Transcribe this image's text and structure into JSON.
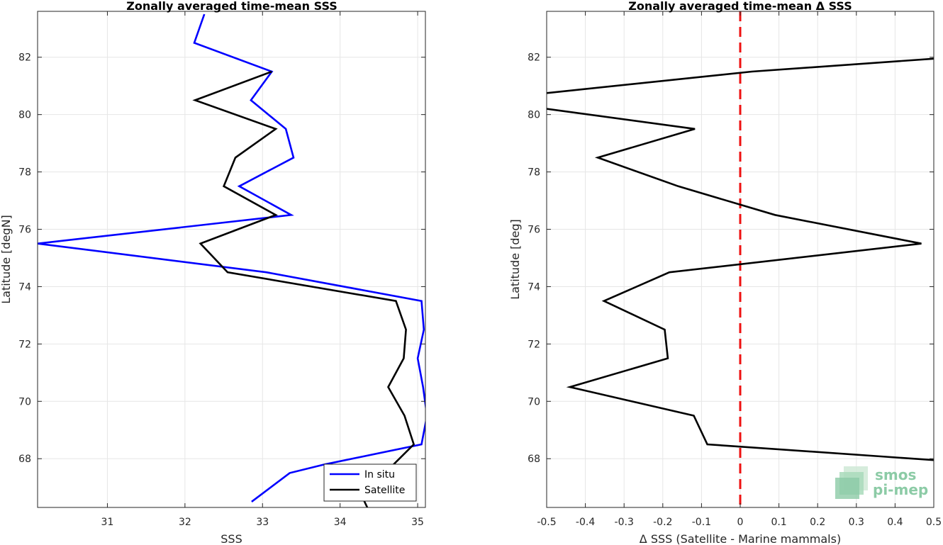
{
  "chart_data": [
    {
      "type": "line",
      "title": "Zonally averaged time-mean SSS",
      "xlabel": "SSS",
      "ylabel": "Latitude [degN]",
      "xlim": [
        30.1,
        35.1
      ],
      "ylim": [
        66.3,
        83.6
      ],
      "xticks": [
        31,
        32,
        33,
        34,
        35
      ],
      "yticks": [
        68,
        70,
        72,
        74,
        76,
        78,
        80,
        82
      ],
      "grid": true,
      "legend_position": "bottom-right",
      "legend": [
        "In situ",
        "Satellite"
      ],
      "series": [
        {
          "name": "In situ",
          "color": "#0000ff",
          "x": [
            32.86,
            33.35,
            33.8,
            35.05,
            35.12,
            35.07,
            35.0,
            35.08,
            35.05,
            33.05,
            30.1,
            33.37,
            32.7,
            33.4,
            33.3,
            32.85,
            33.12,
            32.12,
            32.25
          ],
          "y": [
            66.5,
            67.5,
            67.8,
            68.5,
            69.5,
            70.5,
            71.5,
            72.5,
            73.5,
            74.5,
            75.5,
            76.5,
            77.5,
            78.5,
            79.5,
            80.5,
            81.5,
            82.5,
            83.5
          ]
        },
        {
          "name": "Satellite",
          "color": "#000000",
          "x": [
            34.35,
            34.28,
            34.95,
            34.83,
            34.62,
            34.82,
            34.85,
            34.72,
            32.55,
            32.2,
            33.17,
            32.5,
            32.65,
            33.17,
            32.13,
            33.12
          ],
          "y": [
            66.3,
            66.7,
            68.5,
            69.5,
            70.5,
            71.5,
            72.5,
            73.5,
            74.5,
            75.5,
            76.5,
            77.5,
            78.5,
            79.5,
            80.5,
            81.5
          ]
        }
      ]
    },
    {
      "type": "line",
      "title": "Zonally averaged time-mean Δ SSS",
      "xlabel": "Δ SSS (Satellite - Marine mammals)",
      "ylabel": "Latitude [deg]",
      "xlim": [
        -0.5,
        0.5
      ],
      "ylim": [
        66.3,
        83.6
      ],
      "xticks": [
        -0.5,
        -0.4,
        -0.3,
        -0.2,
        -0.1,
        0,
        0.1,
        0.2,
        0.3,
        0.4,
        0.5
      ],
      "xticklabels": [
        "-0.5",
        "-0.4",
        "-0.3",
        "-0.2",
        "-0.1",
        "0",
        "0.1",
        "0.2",
        "0.3",
        "0.4",
        "0.5"
      ],
      "yticks": [
        68,
        70,
        72,
        74,
        76,
        78,
        80,
        82
      ],
      "grid": true,
      "zero_line": {
        "x": 0,
        "color": "#ee1111",
        "style": "dashed"
      },
      "series": [
        {
          "color": "#000000",
          "x": [
            0.5,
            -0.085,
            -0.12,
            -0.44,
            -0.187,
            -0.195,
            -0.352,
            -0.183,
            0.468,
            0.09,
            -0.16,
            -0.368,
            -0.117,
            -0.5
          ],
          "y": [
            67.95,
            68.5,
            69.5,
            70.5,
            71.5,
            72.5,
            73.5,
            74.5,
            75.5,
            76.5,
            77.5,
            78.5,
            79.5,
            80.2
          ]
        },
        {
          "color": "#000000",
          "x": [
            -0.5,
            0.03,
            0.5
          ],
          "y": [
            80.75,
            81.5,
            81.95
          ]
        }
      ]
    }
  ],
  "logo": {
    "line1": "smos",
    "line2": "pi-mep"
  }
}
